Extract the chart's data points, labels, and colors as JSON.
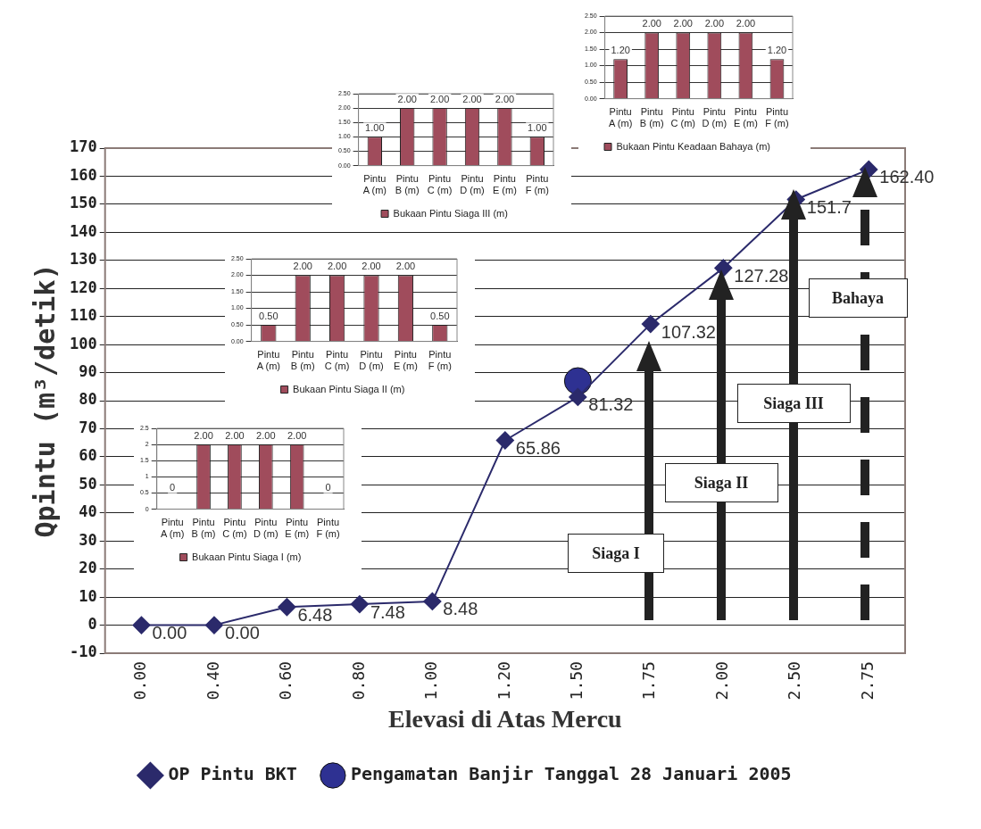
{
  "chart_data": [
    {
      "type": "line",
      "xlabel": "Elevasi di Atas Mercu",
      "ylabel": "Qpintu (m³/detik)",
      "categories": [
        "0.00",
        "0.40",
        "0.60",
        "0.80",
        "1.00",
        "1.20",
        "1.50",
        "1.75",
        "2.00",
        "2.50",
        "2.75"
      ],
      "ylim": [
        -10,
        170
      ],
      "yticks": [
        -10,
        0,
        10,
        20,
        30,
        40,
        50,
        60,
        70,
        80,
        90,
        100,
        110,
        120,
        130,
        140,
        150,
        160,
        170
      ],
      "grid": "y",
      "legend": "bottom",
      "series": [
        {
          "name": "OP Pintu BKT",
          "color": "#2b2a6b",
          "marker": "diamond",
          "values": [
            0,
            0,
            6.48,
            7.48,
            8.48,
            65.86,
            81.32,
            107.32,
            127.28,
            151.7,
            162.4
          ],
          "value_labels": [
            "0.00",
            "0.00",
            "6.48",
            "7.48",
            "8.48",
            "65.86",
            "81.32",
            "107.32",
            "127.28",
            "151.7",
            "162.40"
          ]
        },
        {
          "name": "Pengamatan Banjir Tanggal 28 Januari 2005",
          "type": "scatter",
          "color": "#2e3192",
          "marker": "circle",
          "x": [
            "1.50"
          ],
          "values": [
            87
          ]
        }
      ],
      "annotations": [
        "Siaga I",
        "Siaga II",
        "Siaga III",
        "Bahaya"
      ]
    },
    {
      "type": "bar",
      "categories": [
        "Pintu A (m)",
        "Pintu B (m)",
        "Pintu C (m)",
        "Pintu D (m)",
        "Pintu E (m)",
        "Pintu F (m)"
      ],
      "ylim": [
        0,
        2.5
      ],
      "yticks": [
        {
          "value": 0,
          "label": "0.00"
        },
        {
          "value": 0.5,
          "label": "0.50"
        },
        {
          "value": 1,
          "label": "1.00"
        },
        {
          "value": 1.5,
          "label": "1.50"
        },
        {
          "value": 2,
          "label": "2.00"
        },
        {
          "value": 2.5,
          "label": "2.50"
        }
      ],
      "grid": "y",
      "legend": "bottom",
      "series": [
        {
          "name": "Bukaan Pintu Keadaan Bahaya (m)",
          "color": "#a04c5c",
          "values": [
            1.2,
            2,
            2,
            2,
            2,
            1.2
          ],
          "value_labels": [
            "1.20",
            "2.00",
            "2.00",
            "2.00",
            "2.00",
            "1.20"
          ]
        }
      ]
    },
    {
      "type": "bar",
      "categories": [
        "Pintu A (m)",
        "Pintu B (m)",
        "Pintu C (m)",
        "Pintu D (m)",
        "Pintu E (m)",
        "Pintu F (m)"
      ],
      "ylim": [
        0,
        2.5
      ],
      "yticks": [
        {
          "value": 0,
          "label": "0.00"
        },
        {
          "value": 0.5,
          "label": "0.50"
        },
        {
          "value": 1,
          "label": "1.00"
        },
        {
          "value": 1.5,
          "label": "1.50"
        },
        {
          "value": 2,
          "label": "2.00"
        },
        {
          "value": 2.5,
          "label": "2.50"
        }
      ],
      "grid": "y",
      "legend": "bottom",
      "series": [
        {
          "name": "Bukaan Pintu Siaga III (m)",
          "color": "#a04c5c",
          "values": [
            1,
            2,
            2,
            2,
            2,
            1
          ],
          "value_labels": [
            "1.00",
            "2.00",
            "2.00",
            "2.00",
            "2.00",
            "1.00"
          ]
        }
      ]
    },
    {
      "type": "bar",
      "categories": [
        "Pintu A (m)",
        "Pintu B (m)",
        "Pintu C (m)",
        "Pintu D (m)",
        "Pintu E (m)",
        "Pintu F (m)"
      ],
      "ylim": [
        0,
        2.5
      ],
      "yticks": [
        {
          "value": 0,
          "label": "0.00"
        },
        {
          "value": 0.5,
          "label": "0.50"
        },
        {
          "value": 1,
          "label": "1.00"
        },
        {
          "value": 1.5,
          "label": "1.50"
        },
        {
          "value": 2,
          "label": "2.00"
        },
        {
          "value": 2.5,
          "label": "2.50"
        }
      ],
      "grid": "y",
      "legend": "bottom",
      "series": [
        {
          "name": "Bukaan Pintu Siaga II (m)",
          "color": "#a04c5c",
          "values": [
            0.5,
            2,
            2,
            2,
            2,
            0.5
          ],
          "value_labels": [
            "0.50",
            "2.00",
            "2.00",
            "2.00",
            "2.00",
            "0.50"
          ]
        }
      ]
    },
    {
      "type": "bar",
      "categories": [
        "Pintu A (m)",
        "Pintu B (m)",
        "Pintu C (m)",
        "Pintu D (m)",
        "Pintu E (m)",
        "Pintu F (m)"
      ],
      "ylim": [
        0,
        2.5
      ],
      "yticks": [
        0,
        0.5,
        1,
        1.5,
        2,
        2.5
      ],
      "grid": "y",
      "legend": "bottom",
      "series": [
        {
          "name": "Bukaan Pintu Siaga I (m)",
          "color": "#a04c5c",
          "values": [
            0,
            2,
            2,
            2,
            2,
            0
          ],
          "value_labels": [
            "0",
            "2.00",
            "2.00",
            "2.00",
            "2.00",
            "0"
          ]
        }
      ]
    }
  ]
}
